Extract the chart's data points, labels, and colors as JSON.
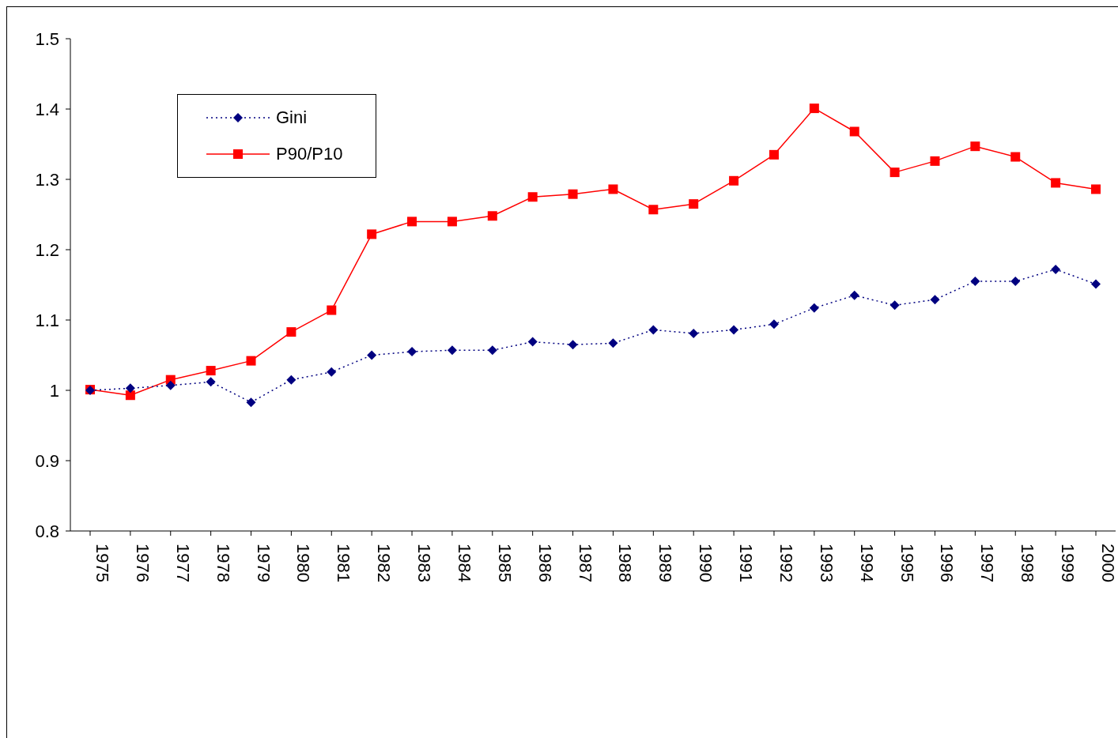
{
  "chart_data": {
    "type": "line",
    "categories": [
      "1975",
      "1976",
      "1977",
      "1978",
      "1979",
      "1980",
      "1981",
      "1982",
      "1983",
      "1984",
      "1985",
      "1986",
      "1987",
      "1988",
      "1989",
      "1990",
      "1991",
      "1992",
      "1993",
      "1994",
      "1995",
      "1996",
      "1997",
      "1998",
      "1999",
      "2000"
    ],
    "series": [
      {
        "name": "Gini",
        "color": "#000080",
        "marker": "diamond",
        "line_style": "dotted",
        "values": [
          1.0,
          1.003,
          1.007,
          1.012,
          0.983,
          1.015,
          1.026,
          1.05,
          1.055,
          1.057,
          1.057,
          1.069,
          1.065,
          1.067,
          1.086,
          1.081,
          1.086,
          1.094,
          1.117,
          1.135,
          1.121,
          1.129,
          1.155,
          1.155,
          1.172,
          1.151
        ]
      },
      {
        "name": "P90/P10",
        "color": "#ff0000",
        "marker": "square",
        "line_style": "solid",
        "values": [
          1.001,
          0.993,
          1.015,
          1.028,
          1.042,
          1.083,
          1.114,
          1.222,
          1.24,
          1.24,
          1.248,
          1.275,
          1.279,
          1.286,
          1.257,
          1.265,
          1.298,
          1.335,
          1.401,
          1.368,
          1.31,
          1.326,
          1.347,
          1.332,
          1.295,
          1.286
        ]
      }
    ],
    "ylim": [
      0.8,
      1.5
    ],
    "yticks": [
      0.8,
      0.9,
      1,
      1.1,
      1.2,
      1.3,
      1.4,
      1.5
    ],
    "grid": false,
    "legend": "top left"
  }
}
